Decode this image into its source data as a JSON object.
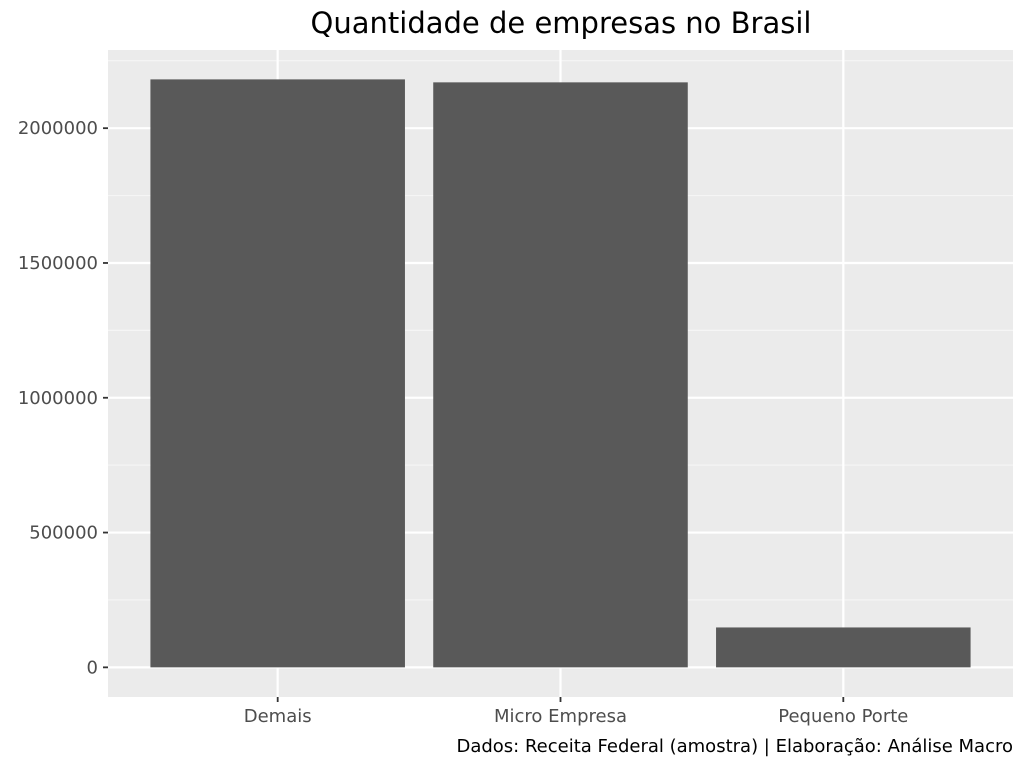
{
  "chart_data": {
    "type": "bar",
    "title": "Quantidade de empresas no Brasil",
    "caption": "Dados: Receita Federal (amostra) | Elaboração: Análise Macro",
    "xlabel": "",
    "ylabel": "",
    "categories": [
      "Demais",
      "Micro Empresa",
      "Pequeno Porte"
    ],
    "values": [
      2181000,
      2170000,
      148000
    ],
    "ylim": [
      -110000,
      2290000
    ],
    "yticks": [
      0,
      500000,
      1000000,
      1500000,
      2000000
    ],
    "ytick_labels": [
      "0",
      "500000",
      "1000000",
      "1500000",
      "2000000"
    ],
    "grid": true,
    "legend": "none",
    "colors": {
      "bar": "#595959",
      "panel": "#ebebeb",
      "grid_major": "#ffffff",
      "grid_minor": "#f5f5f5",
      "tick": "#333333",
      "tick_text": "#4d4d4d"
    }
  }
}
